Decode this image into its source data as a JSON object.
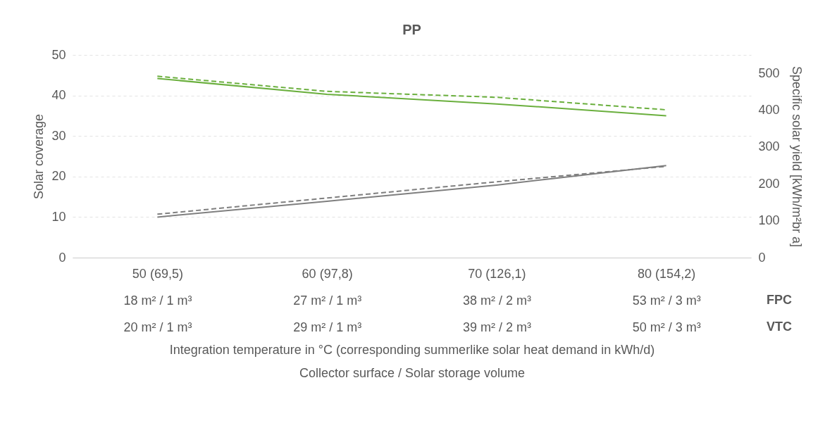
{
  "chart_data": {
    "type": "line",
    "title": "PP",
    "xlabel": "Integration temperature in °C (corresponding summerlike solar heat demand in kWh/d)\nCollector surface / Solar storage volume",
    "ylabel": "Solar coverage",
    "y2label": "Specific solar yield [kWh/m²br a]",
    "categories": [
      "50 (69,5)\n18 m² / 1 m³\n20 m² / 1 m³",
      "60 (97,8)\n27 m² / 1 m³\n29 m² / 1 m³",
      "70 (126,1)\n38 m² / 2 m³\n39 m² / 2 m³",
      "80 (154,2)\n53 m² / 3 m³\n50 m² / 3 m³"
    ],
    "ylim": [
      0,
      50
    ],
    "yticks": [
      0,
      10,
      20,
      30,
      40,
      50
    ],
    "y2lim": [
      0,
      550
    ],
    "y2ticks": [
      0,
      100,
      200,
      300,
      400,
      500
    ],
    "grid": "y",
    "annotations": [
      "FPC",
      "VTC"
    ],
    "series": [
      {
        "color": "#7f7f7f",
        "line_style": "solid",
        "values": [
          10.0,
          13.9,
          17.9,
          22.7
        ]
      },
      {
        "color": "#7f7f7f",
        "line_style": "dashed",
        "values": [
          10.7,
          14.7,
          18.7,
          22.5
        ]
      },
      {
        "color": "#6aaf3d",
        "line_style": "solid",
        "axis": "y2",
        "values": [
          486,
          443,
          417,
          385
        ]
      },
      {
        "color": "#6aaf3d",
        "line_style": "dashed",
        "axis": "y2",
        "values": [
          492,
          451,
          435,
          401
        ]
      }
    ]
  }
}
